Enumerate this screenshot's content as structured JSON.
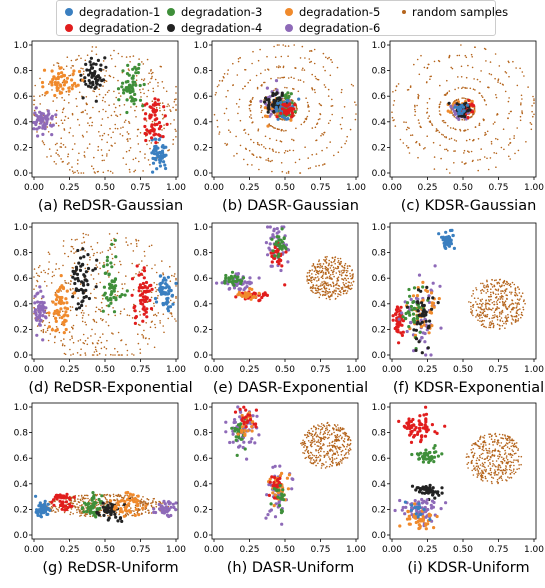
{
  "legend": [
    {
      "name": "degradation-1",
      "color": "#3a7fc0"
    },
    {
      "name": "degradation-2",
      "color": "#e11d1d"
    },
    {
      "name": "degradation-3",
      "color": "#3f8f3a"
    },
    {
      "name": "degradation-4",
      "color": "#222222"
    },
    {
      "name": "degradation-5",
      "color": "#f08a2c"
    },
    {
      "name": "degradation-6",
      "color": "#8e6ab8"
    },
    {
      "name": "random samples",
      "color": "#b5651d"
    }
  ],
  "chart_data": [
    {
      "type": "scatter",
      "caption": "(a) ReDSR-Gaussian",
      "xlim": [
        0,
        1
      ],
      "ylim": [
        0,
        1
      ],
      "xticks": [
        "0.00",
        "0.25",
        "0.50",
        "0.75",
        "1.00"
      ],
      "yticks": [
        "0.0",
        "0.2",
        "0.4",
        "0.6",
        "0.8",
        "1.0"
      ],
      "random": {
        "kind": "ring",
        "cx": 0.5,
        "cy": 0.47,
        "r": 0.55,
        "n": 420
      },
      "clusters": [
        {
          "series": 0,
          "cx": 0.88,
          "cy": 0.13,
          "sx": 0.035,
          "sy": 0.06,
          "n": 55
        },
        {
          "series": 1,
          "cx": 0.85,
          "cy": 0.42,
          "sx": 0.04,
          "sy": 0.09,
          "n": 55
        },
        {
          "series": 2,
          "cx": 0.69,
          "cy": 0.68,
          "sx": 0.04,
          "sy": 0.08,
          "n": 55
        },
        {
          "series": 3,
          "cx": 0.42,
          "cy": 0.77,
          "sx": 0.04,
          "sy": 0.08,
          "n": 55
        },
        {
          "series": 4,
          "cx": 0.19,
          "cy": 0.71,
          "sx": 0.06,
          "sy": 0.05,
          "n": 55
        },
        {
          "series": 5,
          "cx": 0.06,
          "cy": 0.41,
          "sx": 0.04,
          "sy": 0.05,
          "n": 55
        }
      ]
    },
    {
      "type": "scatter",
      "caption": "(b) DASR-Gaussian",
      "xlim": [
        0,
        1
      ],
      "ylim": [
        0,
        1
      ],
      "xticks": [
        "0.00",
        "0.25",
        "0.50",
        "0.75",
        "1.00"
      ],
      "yticks": [
        "0.0",
        "0.2",
        "0.4",
        "0.6",
        "0.8",
        "1.0"
      ],
      "random": {
        "kind": "rings",
        "cx": 0.5,
        "cy": 0.5,
        "r": 0.5,
        "n": 400
      },
      "clusters": [
        {
          "series": 5,
          "cx": 0.44,
          "cy": 0.53,
          "sx": 0.05,
          "sy": 0.06,
          "n": 50
        },
        {
          "series": 4,
          "cx": 0.46,
          "cy": 0.5,
          "sx": 0.05,
          "sy": 0.05,
          "n": 40
        },
        {
          "series": 2,
          "cx": 0.49,
          "cy": 0.52,
          "sx": 0.04,
          "sy": 0.05,
          "n": 40
        },
        {
          "series": 3,
          "cx": 0.42,
          "cy": 0.55,
          "sx": 0.04,
          "sy": 0.05,
          "n": 40
        },
        {
          "series": 0,
          "cx": 0.5,
          "cy": 0.5,
          "sx": 0.04,
          "sy": 0.04,
          "n": 30
        },
        {
          "series": 1,
          "cx": 0.53,
          "cy": 0.5,
          "sx": 0.03,
          "sy": 0.03,
          "n": 30
        }
      ]
    },
    {
      "type": "scatter",
      "caption": "(c) KDSR-Gaussian",
      "xlim": [
        0,
        1
      ],
      "ylim": [
        0,
        1
      ],
      "xticks": [
        "0.00",
        "0.25",
        "0.50",
        "0.75",
        "1.00"
      ],
      "yticks": [
        "0.0",
        "0.2",
        "0.4",
        "0.6",
        "0.8",
        "1.0"
      ],
      "random": {
        "kind": "rings",
        "cx": 0.5,
        "cy": 0.5,
        "r": 0.5,
        "n": 380
      },
      "clusters": [
        {
          "series": 4,
          "cx": 0.5,
          "cy": 0.5,
          "sx": 0.05,
          "sy": 0.03,
          "n": 50
        },
        {
          "series": 5,
          "cx": 0.48,
          "cy": 0.48,
          "sx": 0.04,
          "sy": 0.03,
          "n": 40
        },
        {
          "series": 1,
          "cx": 0.53,
          "cy": 0.5,
          "sx": 0.025,
          "sy": 0.03,
          "n": 30
        },
        {
          "series": 3,
          "cx": 0.5,
          "cy": 0.5,
          "sx": 0.03,
          "sy": 0.025,
          "n": 25
        },
        {
          "series": 0,
          "cx": 0.48,
          "cy": 0.5,
          "sx": 0.02,
          "sy": 0.02,
          "n": 20
        }
      ]
    },
    {
      "type": "scatter",
      "caption": "(d) ReDSR-Exponential",
      "xlim": [
        0,
        1
      ],
      "ylim": [
        0,
        1
      ],
      "xticks": [
        "0.00",
        "0.25",
        "0.50",
        "0.75",
        "1.00"
      ],
      "yticks": [
        "0.0",
        "0.2",
        "0.4",
        "0.6",
        "0.8",
        "1.0"
      ],
      "random": {
        "kind": "ring",
        "cx": 0.5,
        "cy": 0.45,
        "r": 0.55,
        "n": 420
      },
      "clusters": [
        {
          "series": 0,
          "cx": 0.93,
          "cy": 0.5,
          "sx": 0.03,
          "sy": 0.07,
          "n": 55
        },
        {
          "series": 1,
          "cx": 0.76,
          "cy": 0.47,
          "sx": 0.04,
          "sy": 0.1,
          "n": 55
        },
        {
          "series": 2,
          "cx": 0.55,
          "cy": 0.55,
          "sx": 0.03,
          "sy": 0.12,
          "n": 55
        },
        {
          "series": 3,
          "cx": 0.34,
          "cy": 0.57,
          "sx": 0.04,
          "sy": 0.12,
          "n": 55
        },
        {
          "series": 4,
          "cx": 0.18,
          "cy": 0.37,
          "sx": 0.035,
          "sy": 0.12,
          "n": 55
        },
        {
          "series": 5,
          "cx": 0.05,
          "cy": 0.34,
          "sx": 0.025,
          "sy": 0.07,
          "n": 55
        }
      ]
    },
    {
      "type": "scatter",
      "caption": "(e) DASR-Exponential",
      "xlim": [
        0,
        1
      ],
      "ylim": [
        0,
        1
      ],
      "xticks": [
        "0.00",
        "0.25",
        "0.50",
        "0.75",
        "1.00"
      ],
      "yticks": [
        "0.0",
        "0.2",
        "0.4",
        "0.6",
        "0.8",
        "1.0"
      ],
      "random": {
        "kind": "disk",
        "cx": 0.82,
        "cy": 0.6,
        "r": 0.17,
        "n": 360
      },
      "clusters": [
        {
          "series": 5,
          "cx": 0.45,
          "cy": 0.85,
          "sx": 0.04,
          "sy": 0.1,
          "n": 45
        },
        {
          "series": 1,
          "cx": 0.44,
          "cy": 0.77,
          "sx": 0.03,
          "sy": 0.05,
          "n": 30
        },
        {
          "series": 2,
          "cx": 0.46,
          "cy": 0.87,
          "sx": 0.03,
          "sy": 0.05,
          "n": 25
        },
        {
          "series": 5,
          "cx": 0.16,
          "cy": 0.56,
          "sx": 0.06,
          "sy": 0.04,
          "n": 45
        },
        {
          "series": 2,
          "cx": 0.14,
          "cy": 0.6,
          "sx": 0.04,
          "sy": 0.03,
          "n": 25
        },
        {
          "series": 1,
          "cx": 0.27,
          "cy": 0.46,
          "sx": 0.05,
          "sy": 0.02,
          "n": 35
        },
        {
          "series": 4,
          "cx": 0.24,
          "cy": 0.47,
          "sx": 0.04,
          "sy": 0.02,
          "n": 25
        }
      ]
    },
    {
      "type": "scatter",
      "caption": "(f) KDSR-Exponential",
      "xlim": [
        0,
        1
      ],
      "ylim": [
        0,
        1
      ],
      "xticks": [
        "0.00",
        "0.25",
        "0.50",
        "0.75",
        "1.00"
      ],
      "yticks": [
        "0.0",
        "0.2",
        "0.4",
        "0.6",
        "0.8",
        "1.0"
      ],
      "random": {
        "kind": "disk",
        "cx": 0.74,
        "cy": 0.4,
        "r": 0.2,
        "n": 360
      },
      "clusters": [
        {
          "series": 0,
          "cx": 0.39,
          "cy": 0.9,
          "sx": 0.025,
          "sy": 0.04,
          "n": 45
        },
        {
          "series": 1,
          "cx": 0.05,
          "cy": 0.27,
          "sx": 0.02,
          "sy": 0.05,
          "n": 45
        },
        {
          "series": 5,
          "cx": 0.2,
          "cy": 0.3,
          "sx": 0.06,
          "sy": 0.14,
          "n": 55
        },
        {
          "series": 4,
          "cx": 0.22,
          "cy": 0.35,
          "sx": 0.05,
          "sy": 0.1,
          "n": 45
        },
        {
          "series": 2,
          "cx": 0.16,
          "cy": 0.32,
          "sx": 0.04,
          "sy": 0.1,
          "n": 40
        },
        {
          "series": 3,
          "cx": 0.21,
          "cy": 0.3,
          "sx": 0.05,
          "sy": 0.12,
          "n": 40
        }
      ]
    },
    {
      "type": "scatter",
      "caption": "(g) ReDSR-Uniform",
      "xlim": [
        0,
        1
      ],
      "ylim": [
        0,
        1
      ],
      "xticks": [
        "0.00",
        "0.25",
        "0.50",
        "0.75",
        "1.00"
      ],
      "yticks": [
        "0.0",
        "0.2",
        "0.4",
        "0.6",
        "0.8",
        "1.0"
      ],
      "random": {
        "kind": "ellipse",
        "cx": 0.5,
        "cy": 0.23,
        "rx": 0.45,
        "ry": 0.09,
        "n": 420
      },
      "clusters": [
        {
          "series": 0,
          "cx": 0.06,
          "cy": 0.2,
          "sx": 0.025,
          "sy": 0.03,
          "n": 45
        },
        {
          "series": 1,
          "cx": 0.2,
          "cy": 0.26,
          "sx": 0.04,
          "sy": 0.04,
          "n": 45
        },
        {
          "series": 2,
          "cx": 0.42,
          "cy": 0.23,
          "sx": 0.05,
          "sy": 0.04,
          "n": 50
        },
        {
          "series": 3,
          "cx": 0.54,
          "cy": 0.18,
          "sx": 0.05,
          "sy": 0.04,
          "n": 45
        },
        {
          "series": 4,
          "cx": 0.67,
          "cy": 0.24,
          "sx": 0.05,
          "sy": 0.04,
          "n": 45
        },
        {
          "series": 5,
          "cx": 0.92,
          "cy": 0.2,
          "sx": 0.03,
          "sy": 0.03,
          "n": 45
        }
      ]
    },
    {
      "type": "scatter",
      "caption": "(h) DASR-Uniform",
      "xlim": [
        0,
        1
      ],
      "ylim": [
        0,
        1
      ],
      "xticks": [
        "0.00",
        "0.25",
        "0.50",
        "0.75",
        "1.00"
      ],
      "yticks": [
        "0.0",
        "0.2",
        "0.4",
        "0.6",
        "0.8",
        "1.0"
      ],
      "random": {
        "kind": "disk",
        "cx": 0.79,
        "cy": 0.7,
        "r": 0.18,
        "n": 360
      },
      "clusters": [
        {
          "series": 5,
          "cx": 0.19,
          "cy": 0.82,
          "sx": 0.06,
          "sy": 0.1,
          "n": 50
        },
        {
          "series": 2,
          "cx": 0.18,
          "cy": 0.8,
          "sx": 0.03,
          "sy": 0.06,
          "n": 25
        },
        {
          "series": 4,
          "cx": 0.23,
          "cy": 0.86,
          "sx": 0.03,
          "sy": 0.06,
          "n": 25
        },
        {
          "series": 1,
          "cx": 0.22,
          "cy": 0.9,
          "sx": 0.03,
          "sy": 0.04,
          "n": 20
        },
        {
          "series": 5,
          "cx": 0.45,
          "cy": 0.27,
          "sx": 0.04,
          "sy": 0.12,
          "n": 50
        },
        {
          "series": 4,
          "cx": 0.46,
          "cy": 0.35,
          "sx": 0.03,
          "sy": 0.08,
          "n": 30
        },
        {
          "series": 1,
          "cx": 0.43,
          "cy": 0.4,
          "sx": 0.02,
          "sy": 0.05,
          "n": 20
        },
        {
          "series": 2,
          "cx": 0.47,
          "cy": 0.3,
          "sx": 0.02,
          "sy": 0.06,
          "n": 20
        }
      ]
    },
    {
      "type": "scatter",
      "caption": "(i) KDSR-Uniform",
      "xlim": [
        0,
        1
      ],
      "ylim": [
        0,
        1
      ],
      "xticks": [
        "0.00",
        "0.25",
        "0.50",
        "0.75",
        "1.00"
      ],
      "yticks": [
        "0.0",
        "0.2",
        "0.4",
        "0.6",
        "0.8",
        "1.0"
      ],
      "random": {
        "kind": "disk",
        "cx": 0.72,
        "cy": 0.6,
        "r": 0.2,
        "n": 360
      },
      "clusters": [
        {
          "series": 1,
          "cx": 0.17,
          "cy": 0.84,
          "sx": 0.06,
          "sy": 0.05,
          "n": 60
        },
        {
          "series": 2,
          "cx": 0.25,
          "cy": 0.62,
          "sx": 0.04,
          "sy": 0.03,
          "n": 40
        },
        {
          "series": 3,
          "cx": 0.25,
          "cy": 0.34,
          "sx": 0.05,
          "sy": 0.025,
          "n": 45
        },
        {
          "series": 5,
          "cx": 0.2,
          "cy": 0.2,
          "sx": 0.07,
          "sy": 0.05,
          "n": 60
        },
        {
          "series": 4,
          "cx": 0.2,
          "cy": 0.13,
          "sx": 0.06,
          "sy": 0.04,
          "n": 40
        },
        {
          "series": 0,
          "cx": 0.2,
          "cy": 0.18,
          "sx": 0.04,
          "sy": 0.03,
          "n": 15
        }
      ]
    }
  ]
}
